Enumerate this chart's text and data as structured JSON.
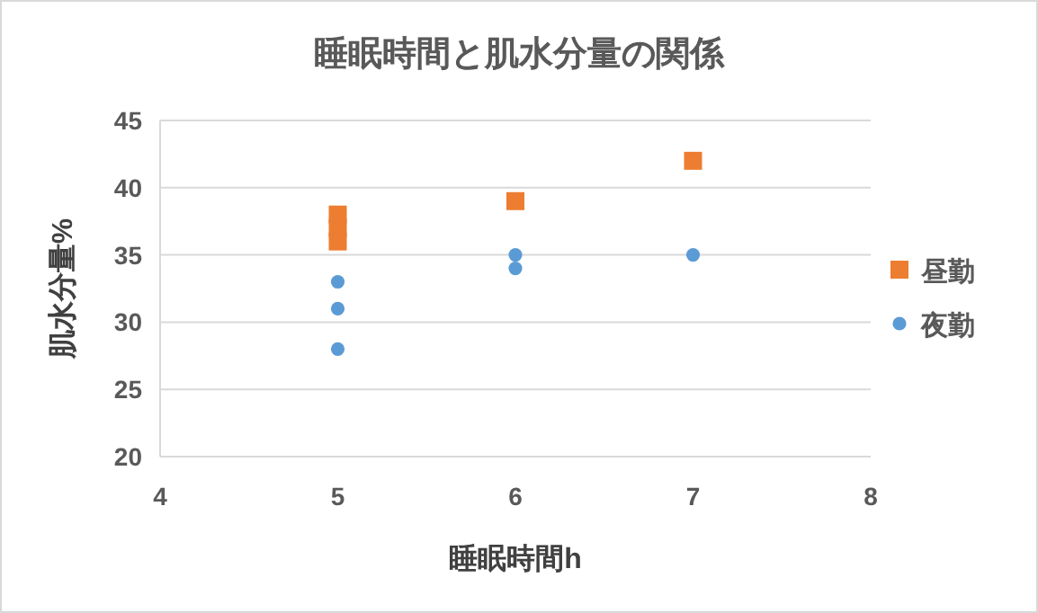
{
  "chart_data": {
    "type": "scatter",
    "title": "睡眠時間と肌水分量の関係",
    "xlabel": "睡眠時間h",
    "ylabel": "肌水分量%",
    "xlim": [
      4,
      8
    ],
    "xticks": [
      4,
      5,
      6,
      7,
      8
    ],
    "ylim": [
      20,
      45
    ],
    "yticks": [
      20,
      25,
      30,
      35,
      40,
      45
    ],
    "grid": "y",
    "legend": "right",
    "series": [
      {
        "name": "昼勤",
        "color": "#ed7d31",
        "marker": "square",
        "x": [
          5,
          5,
          5,
          6,
          7
        ],
        "values": [
          36,
          37,
          38,
          39,
          42
        ]
      },
      {
        "name": "夜勤",
        "color": "#5b9bd5",
        "marker": "circle",
        "x": [
          5,
          5,
          5,
          6,
          6,
          7
        ],
        "values": [
          33,
          31,
          28,
          35,
          34,
          35
        ]
      }
    ]
  }
}
